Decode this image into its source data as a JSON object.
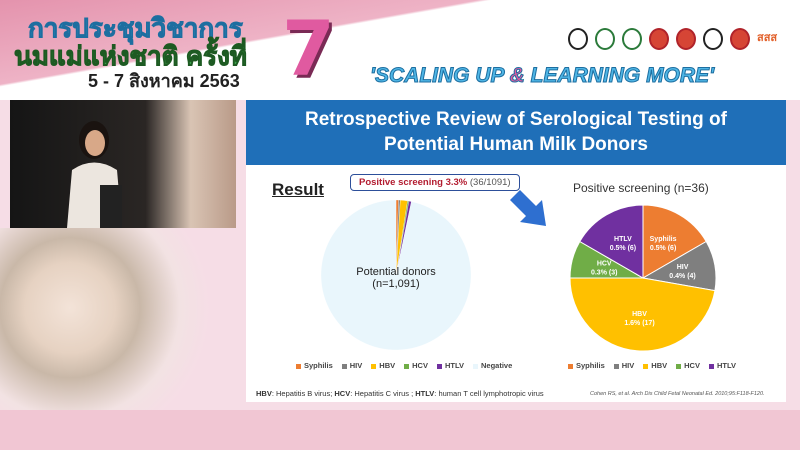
{
  "banner": {
    "line1": "การประชุมวิชาการ",
    "line2": "นมแม่แห่งชาติ ครั้งที่",
    "dates": "5 - 7 สิงหาคม 2563",
    "number": "7",
    "slogan_a": "'SCALING UP ",
    "slogan_amp": "&",
    "slogan_b": " LEARNING MORE'",
    "logo_text": "สสส"
  },
  "slide": {
    "title_line1": "Retrospective Review of Serological Testing of",
    "title_line2": "Potential Human Milk Donors",
    "result_heading": "Result",
    "callout_bold": "Positive screening 3.3%",
    "callout_rest": " (36/1091)",
    "footnote": [
      {
        "abbr": "HBV",
        "text": ": Hepatitis B virus; "
      },
      {
        "abbr": "HCV",
        "text": ": Hepatitis C virus ; "
      },
      {
        "abbr": "HTLV",
        "text": ": human T cell lymphotropic virus"
      }
    ],
    "citation": "Cohen RS, et al. Arch Dis Child Fetal Neonatal Ed. 2010;95:F118-F120."
  },
  "chart_data": [
    {
      "type": "pie",
      "label_line1": "Potential donors",
      "label_line2": "(n=1,091)",
      "categories": [
        "Syphilis",
        "HIV",
        "HBV",
        "HCV",
        "HTLV",
        "Negative"
      ],
      "values": [
        6,
        4,
        17,
        3,
        6,
        1055
      ],
      "colors": [
        "#ed7d31",
        "#7f7f7f",
        "#ffc000",
        "#70ad47",
        "#7030a0",
        "#e9f6fc"
      ],
      "legend": "bottom"
    },
    {
      "type": "pie",
      "title": "Positive screening (n=36)",
      "categories": [
        "Syphilis",
        "HIV",
        "HBV",
        "HCV",
        "HTLV"
      ],
      "values": [
        6,
        4,
        17,
        3,
        6
      ],
      "labels": [
        "0.5% (6)",
        "0.4% (4)",
        "1.6% (17)",
        "0.3% (3)",
        "0.5% (6)"
      ],
      "colors": [
        "#ed7d31",
        "#7f7f7f",
        "#ffc000",
        "#70ad47",
        "#7030a0"
      ],
      "legend": "bottom"
    }
  ]
}
